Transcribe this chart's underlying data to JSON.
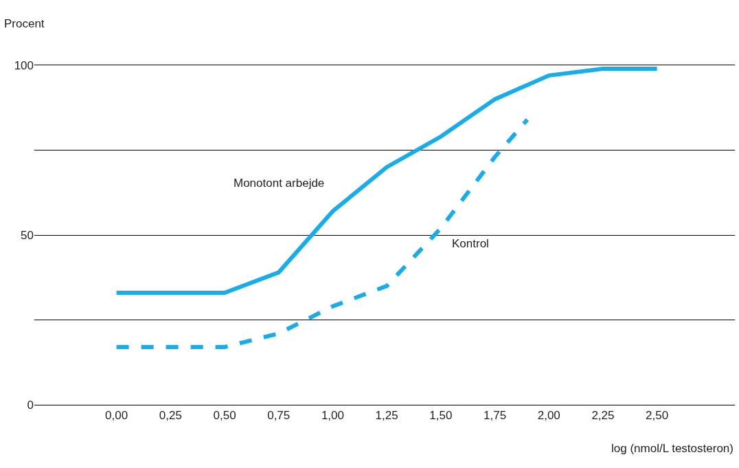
{
  "chart_data": {
    "type": "line",
    "xlabel": "log (nmol/L testosteron)",
    "ylabel": "Procent",
    "xlim": [
      -0.38,
      2.86
    ],
    "ylim": [
      0,
      100
    ],
    "xticks": [
      {
        "value": 0,
        "label": "0,00"
      },
      {
        "value": 0.25,
        "label": "0,25"
      },
      {
        "value": 0.5,
        "label": "0,50"
      },
      {
        "value": 0.75,
        "label": "0,75"
      },
      {
        "value": 1,
        "label": "1,00"
      },
      {
        "value": 1.25,
        "label": "1,25"
      },
      {
        "value": 1.5,
        "label": "1,50"
      },
      {
        "value": 1.75,
        "label": "1,75"
      },
      {
        "value": 2,
        "label": "2,00"
      },
      {
        "value": 2.25,
        "label": "2,25"
      },
      {
        "value": 2.5,
        "label": "2,50"
      }
    ],
    "yticks": [
      0,
      {
        "value": 25,
        "label": null
      },
      50,
      {
        "value": 75,
        "label": null
      },
      100
    ],
    "grid": "y",
    "legend": false,
    "marker": "none",
    "series": [
      {
        "name": "Monotont arbejde",
        "color": "#1aace8",
        "line_style": "solid",
        "x": [
          0,
          0.5,
          0.75,
          1,
          1.25,
          1.5,
          1.75,
          2,
          2.25,
          2.5
        ],
        "values": [
          33,
          33,
          39,
          57,
          70,
          79,
          90,
          97,
          99,
          99
        ]
      },
      {
        "name": "Kontrol",
        "color": "#1aace8",
        "line_style": "dashed",
        "x": [
          0,
          0.5,
          0.75,
          1,
          1.25,
          1.5,
          1.75,
          1.9
        ],
        "values": [
          17,
          17,
          21,
          29,
          35,
          52,
          73,
          84
        ]
      }
    ]
  }
}
